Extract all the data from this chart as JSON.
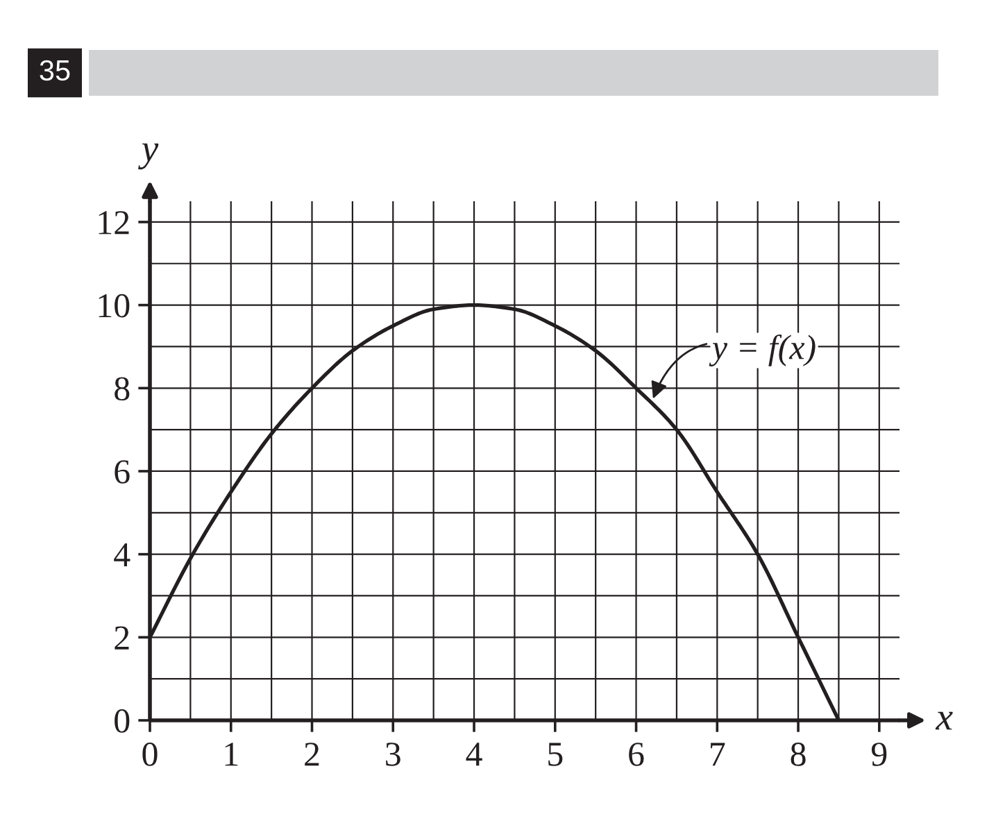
{
  "chart_data": {
    "type": "line",
    "title": "35",
    "xlabel": "x",
    "ylabel": "y",
    "x": [
      0,
      0.5,
      1,
      1.5,
      2,
      2.5,
      3,
      3.5,
      4,
      4.5,
      5,
      5.5,
      6,
      6.5,
      7,
      7.5,
      8,
      8.5
    ],
    "series": [
      {
        "color": "#231f20",
        "values": [
          2,
          3.9,
          5.5,
          6.9,
          8,
          8.9,
          9.5,
          9.9,
          10,
          9.9,
          9.5,
          8.9,
          8,
          7,
          5.5,
          4,
          2,
          0
        ]
      }
    ],
    "xlim": [
      0,
      9.25
    ],
    "ylim": [
      0,
      12.5
    ],
    "xticks": [
      0,
      {
        "value": 0.5,
        "label": null
      },
      1,
      {
        "value": 1.5,
        "label": null
      },
      2,
      {
        "value": 2.5,
        "label": null
      },
      3,
      {
        "value": 3.5,
        "label": null
      },
      4,
      {
        "value": 4.5,
        "label": null
      },
      5,
      {
        "value": 5.5,
        "label": null
      },
      6,
      {
        "value": 6.5,
        "label": null
      },
      7,
      {
        "value": 7.5,
        "label": null
      },
      8,
      {
        "value": 8.5,
        "label": null
      },
      9
    ],
    "yticks": [
      0,
      {
        "value": 1,
        "label": null
      },
      2,
      {
        "value": 3,
        "label": null
      },
      4,
      {
        "value": 5,
        "label": null
      },
      6,
      {
        "value": 7,
        "label": null
      },
      8,
      {
        "value": 9,
        "label": null
      },
      10,
      {
        "value": 11,
        "label": null
      },
      12
    ],
    "grid": true,
    "line_style": "solid",
    "annotations": [
      {
        "text": "y = f(x)",
        "x": 6.2,
        "y": 7.7
      }
    ]
  }
}
